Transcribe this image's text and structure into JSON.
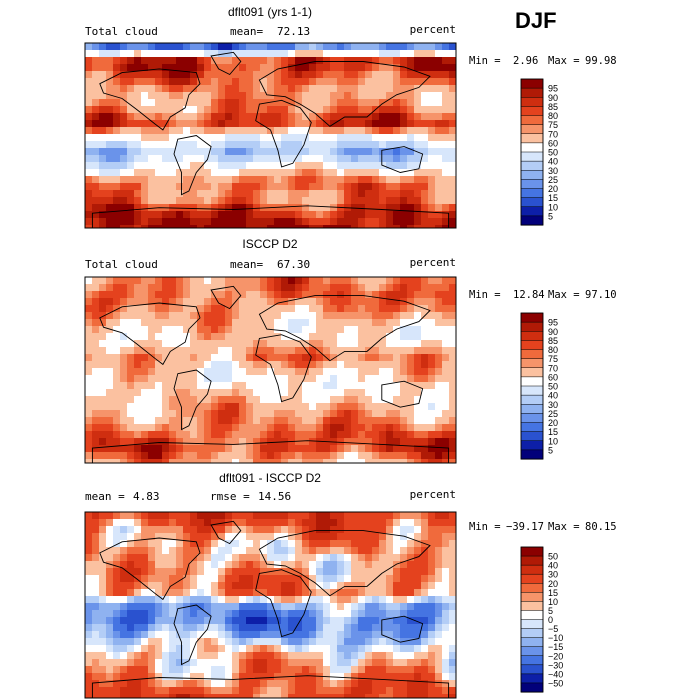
{
  "season": "DJF",
  "chart_data": [
    {
      "type": "heatmap",
      "title": "dflt091 (yrs 1-1)",
      "variable_label": "Total cloud",
      "mean_label": "mean=",
      "mean_value": "72.13",
      "units": "percent",
      "min_label": "Min =",
      "min_value": "2.96",
      "max_label": "Max =",
      "max_value": "99.98",
      "colorbar_levels": [
        "95",
        "90",
        "85",
        "80",
        "75",
        "70",
        "60",
        "50",
        "40",
        "30",
        "25",
        "20",
        "15",
        "10",
        "5"
      ],
      "colorbar_colors": [
        "#8b0000",
        "#b01a06",
        "#cf2e10",
        "#e4421e",
        "#f06a3c",
        "#f6946a",
        "#fbc1a0",
        "#ffffff",
        "#d7e6fb",
        "#b3cdf6",
        "#8fb2f0",
        "#6a93ea",
        "#4574e2",
        "#2a52cf",
        "#0d1fa8",
        "#02007a"
      ],
      "zonal_band_values": [
        20,
        92,
        80,
        70,
        72,
        88,
        52,
        32,
        55,
        78,
        74,
        90,
        96
      ]
    },
    {
      "type": "heatmap",
      "title": "ISCCP D2",
      "variable_label": "Total cloud",
      "mean_label": "mean=",
      "mean_value": "67.30",
      "units": "percent",
      "min_label": "Min =",
      "min_value": "12.84",
      "max_label": "Max =",
      "max_value": "97.10",
      "colorbar_levels": [
        "95",
        "90",
        "85",
        "80",
        "75",
        "70",
        "60",
        "50",
        "40",
        "30",
        "25",
        "20",
        "15",
        "10",
        "5"
      ],
      "colorbar_colors": [
        "#8b0000",
        "#b01a06",
        "#cf2e10",
        "#e4421e",
        "#f06a3c",
        "#f6946a",
        "#fbc1a0",
        "#ffffff",
        "#d7e6fb",
        "#b3cdf6",
        "#8fb2f0",
        "#6a93ea",
        "#4574e2",
        "#2a52cf",
        "#0d1fa8",
        "#02007a"
      ],
      "zonal_band_values": [
        75,
        78,
        72,
        62,
        60,
        74,
        62,
        58,
        66,
        72,
        80,
        84,
        70
      ]
    },
    {
      "type": "heatmap",
      "title": "dflt091 - ISCCP D2",
      "mean_label": "mean =",
      "mean_value": "4.83",
      "rmse_label": "rmse =",
      "rmse_value": "14.56",
      "units": "percent",
      "min_label": "Min =",
      "min_value": "−39.17",
      "max_label": "Max =",
      "max_value": "80.15",
      "colorbar_levels": [
        "50",
        "40",
        "30",
        "20",
        "15",
        "10",
        "5",
        "0",
        "−5",
        "−10",
        "−15",
        "−20",
        "−30",
        "−40",
        "−50"
      ],
      "colorbar_colors": [
        "#8b0000",
        "#b01a06",
        "#cf2e10",
        "#e4421e",
        "#f06a3c",
        "#f6946a",
        "#fbc1a0",
        "#ffffff",
        "#d7e6fb",
        "#b3cdf6",
        "#8fb2f0",
        "#6a93ea",
        "#4574e2",
        "#2a52cf",
        "#0d1fa8",
        "#02007a"
      ],
      "zonal_band_values": [
        30,
        18,
        10,
        8,
        14,
        16,
        -14,
        -22,
        -10,
        4,
        10,
        18,
        26
      ]
    }
  ]
}
